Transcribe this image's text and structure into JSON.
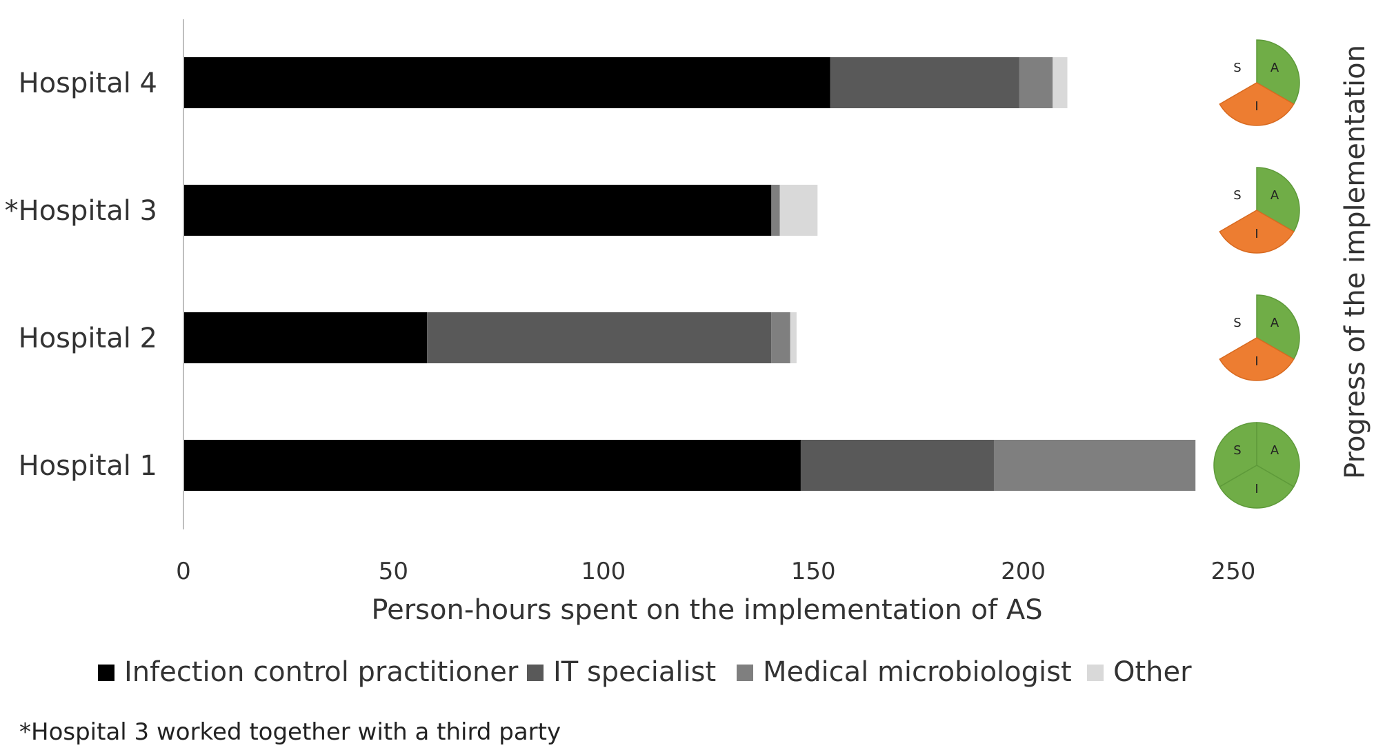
{
  "chart_data": {
    "type": "bar",
    "orientation": "horizontal",
    "stacked": true,
    "categories": [
      "Hospital 1",
      "Hospital 2",
      "*Hospital 3",
      "Hospital 4"
    ],
    "series": [
      {
        "name": "Infection control practitioner",
        "color": "#000000",
        "values": [
          147,
          58,
          140,
          154
        ]
      },
      {
        "name": "IT specialist",
        "color": "#595959",
        "values": [
          46,
          82,
          0,
          45
        ]
      },
      {
        "name": "Medical microbiologist",
        "color": "#7f7f7f",
        "values": [
          48,
          4.5,
          2,
          8
        ]
      },
      {
        "name": "Other",
        "color": "#d9d9d9",
        "values": [
          0,
          1.5,
          9,
          3.5
        ]
      }
    ],
    "xlabel": "Person-hours spent on the implementation of AS",
    "xlim": [
      0,
      250
    ],
    "xticks": [
      "0",
      "50",
      "100",
      "150",
      "200",
      "250"
    ],
    "grid": false,
    "legend_position": "bottom",
    "progress": {
      "title": "Progress of the implementation",
      "segment_labels": [
        "S",
        "A",
        "I"
      ],
      "colors": {
        "complete": "#70ad47",
        "in_progress": "#ed7d31"
      },
      "hospitals": [
        {
          "hospital": "Hospital 1",
          "S": "complete",
          "A": "complete",
          "I": "complete"
        },
        {
          "hospital": "Hospital 2",
          "S": "not-started",
          "A": "complete",
          "I": "in-progress"
        },
        {
          "hospital": "*Hospital 3",
          "S": "not-started",
          "A": "complete",
          "I": "in-progress"
        },
        {
          "hospital": "Hospital 4",
          "S": "not-started",
          "A": "complete",
          "I": "in-progress"
        }
      ]
    },
    "footnote": "*Hospital 3 worked together with a third party"
  }
}
